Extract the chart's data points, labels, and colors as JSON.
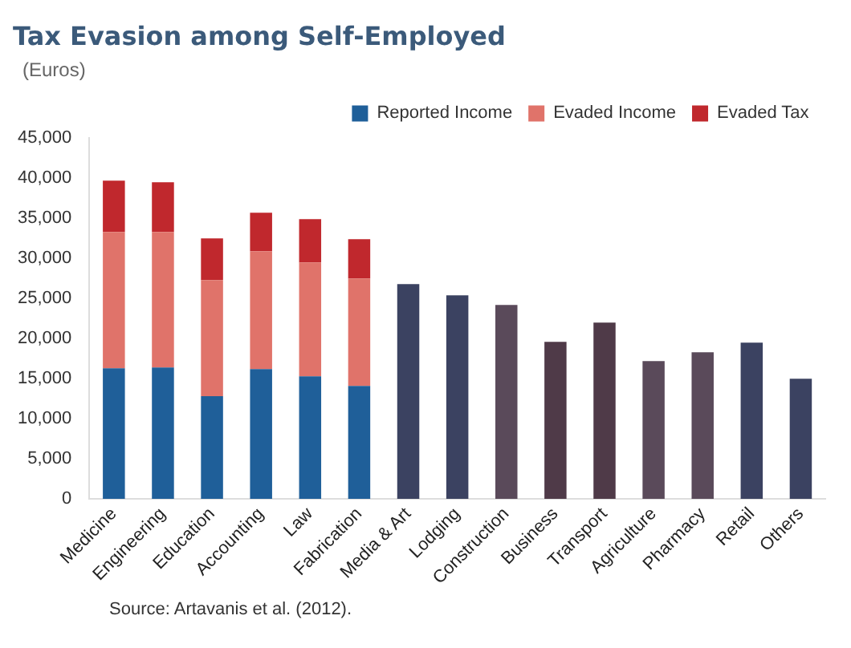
{
  "chart_data": {
    "type": "bar",
    "title": "Tax Evasion among Self-Employed",
    "ylabel": "(Euros)",
    "stacked": true,
    "legend": "top",
    "grid": false,
    "categories": [
      "Medicine",
      "Engineering",
      "Education",
      "Accounting",
      "Law",
      "Fabrication",
      "Media & Art",
      "Lodging",
      "Construction",
      "Business",
      "Transport",
      "Agriculture",
      "Pharmacy",
      "Retail",
      "Others"
    ],
    "series": [
      {
        "name": "Reported Income",
        "color": "#1f5f99",
        "values": [
          16300,
          16400,
          12800,
          16200,
          15300,
          14100,
          null,
          null,
          null,
          null,
          null,
          null,
          null,
          null,
          null
        ]
      },
      {
        "name": "Evaded Income",
        "color": "#e0736a",
        "values": [
          17000,
          16900,
          14500,
          14700,
          14200,
          13400,
          null,
          null,
          null,
          null,
          null,
          null,
          null,
          null,
          null
        ]
      },
      {
        "name": "Evaded Tax",
        "color": "#c0282d",
        "values": [
          6400,
          6200,
          5200,
          4800,
          5400,
          4900,
          null,
          null,
          null,
          null,
          null,
          null,
          null,
          null,
          null
        ]
      },
      {
        "colors": [
          "#3b4261",
          "#3b4261",
          "#3b4261",
          "#3b4261",
          "#3b4261",
          "#3b4261",
          "#3b4261",
          "#3b4261",
          "#5a4a5a",
          "#4f3a48",
          "#4f3a48",
          "#5a4a5a",
          "#5a4a5a",
          "#3b4261",
          "#3b4261"
        ],
        "values": [
          null,
          null,
          null,
          null,
          null,
          null,
          26800,
          25400,
          24200,
          19600,
          22000,
          17200,
          18300,
          19500,
          15000
        ]
      }
    ],
    "ylim": [
      0,
      45000
    ],
    "yticks": [
      {
        "value": 0,
        "label": "0"
      },
      {
        "value": 5000,
        "label": "5,000"
      },
      {
        "value": 10000,
        "label": "10,000"
      },
      {
        "value": 15000,
        "label": "15,000"
      },
      {
        "value": 20000,
        "label": "20,000"
      },
      {
        "value": 25000,
        "label": "25,000"
      },
      {
        "value": 30000,
        "label": "30,000"
      },
      {
        "value": 35000,
        "label": "35,000"
      },
      {
        "value": 40000,
        "label": "40,000"
      },
      {
        "value": 45000,
        "label": "45,000"
      }
    ],
    "annotations": [
      "Source: Artavanis et al. (2012)."
    ]
  }
}
